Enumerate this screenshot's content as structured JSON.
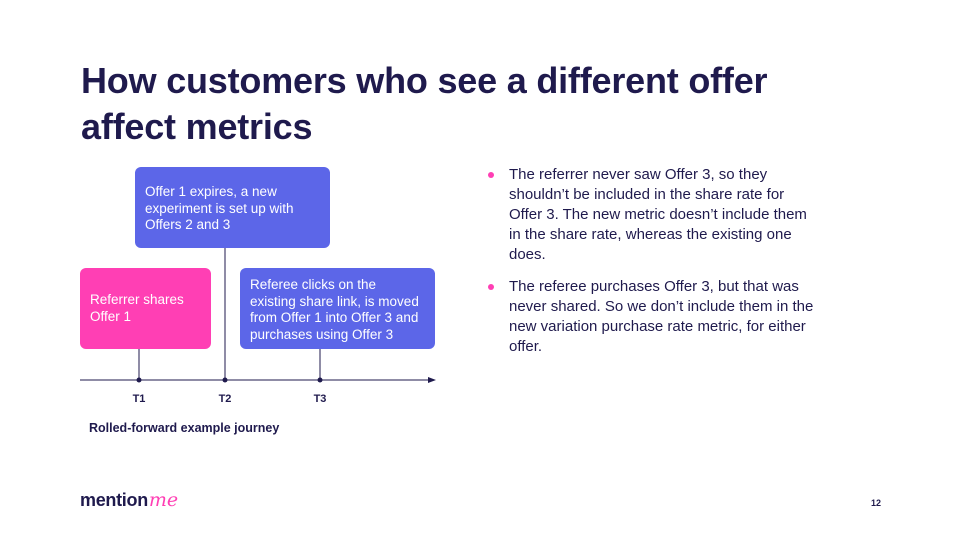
{
  "slide": {
    "title_line1": "How customers who see a different offer",
    "title_line2": "affect metrics",
    "page_number": "12"
  },
  "diagram": {
    "boxes": {
      "offer1": "Offer 1 expires, a new experiment is set up with Offers 2 and 3",
      "referrer": "Referrer shares Offer 1",
      "referee": "Referee clicks on the existing share link, is moved from Offer 1 into Offer 3 and purchases using Offer 3"
    },
    "ticks": [
      "T1",
      "T2",
      "T3"
    ],
    "caption": "Rolled-forward example journey"
  },
  "bullets": [
    "The referrer never saw Offer 3, so they shouldn’t be included in the share rate for Offer 3. The new metric doesn’t include them in the share rate, whereas the existing one does.",
    "The referee purchases Offer 3, but that was never shared. So we don’t include them in the new variation purchase rate metric, for either offer."
  ],
  "logo": {
    "word": "mention",
    "accent": "me"
  },
  "colors": {
    "navy": "#1f1a4d",
    "pink": "#ff3fb4",
    "blue": "#5c66e8"
  }
}
